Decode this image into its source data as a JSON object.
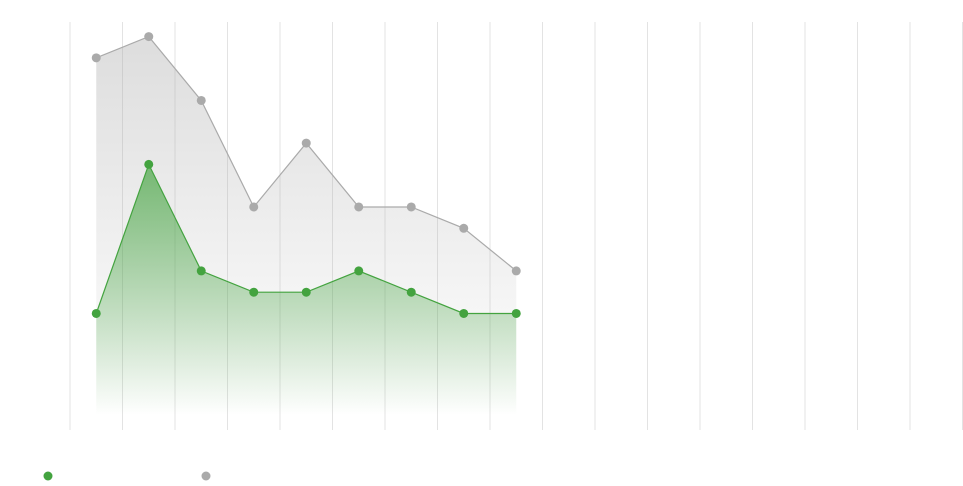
{
  "chart_data": {
    "type": "area",
    "categories": [
      null,
      null,
      null,
      null,
      null,
      null,
      null,
      null,
      null,
      null,
      null,
      null,
      null,
      null,
      null,
      null,
      null
    ],
    "series": [
      {
        "color": "#43a33f",
        "values": [
          5,
          12,
          7,
          6,
          6,
          7,
          6,
          5,
          5,
          null,
          null,
          null,
          null,
          null,
          null,
          null,
          null
        ]
      },
      {
        "color": "#aaaaaa",
        "values": [
          17,
          18,
          15,
          10,
          13,
          10,
          10,
          9,
          7,
          null,
          null,
          null,
          null,
          null,
          null,
          null,
          null
        ]
      }
    ],
    "ylim": [
      0,
      19.2
    ],
    "grid": true
  }
}
